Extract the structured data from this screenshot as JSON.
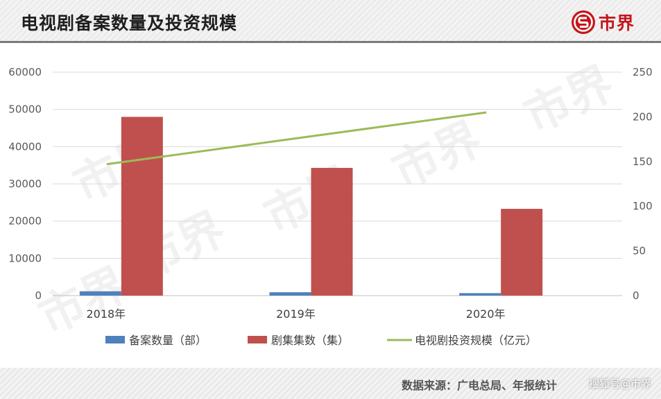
{
  "header": {
    "title": "电视剧备案数量及投资规模",
    "brand": "市界"
  },
  "watermark": "市界",
  "footer": {
    "source": "数据来源：广电总局、年报统计",
    "mark": "搜狐号@市界"
  },
  "colors": {
    "filings": "#4f81bd",
    "episodes": "#c0504d",
    "investment": "#9bbb59",
    "brand": "#c4161c"
  },
  "chart_data": {
    "type": "bar",
    "categories": [
      "2018年",
      "2019年",
      "2020年"
    ],
    "series": [
      {
        "name": "备案数量（部）",
        "kind": "bar",
        "axis": "left",
        "values": [
          1163,
          905,
          670
        ]
      },
      {
        "name": "剧集集数（集）",
        "kind": "bar",
        "axis": "left",
        "values": [
          48000,
          34300,
          23300
        ]
      },
      {
        "name": "电视剧投资规模（亿元）",
        "kind": "line",
        "axis": "right",
        "values": [
          147,
          null,
          205
        ]
      }
    ],
    "y_left": {
      "min": 0,
      "max": 60000,
      "ticks": [
        "0",
        "10000",
        "20000",
        "30000",
        "40000",
        "50000",
        "60000"
      ]
    },
    "y_right": {
      "min": 0,
      "max": 250,
      "ticks": [
        "0",
        "50",
        "100",
        "150",
        "200",
        "250"
      ]
    },
    "grid": true,
    "legend": "bottom"
  }
}
